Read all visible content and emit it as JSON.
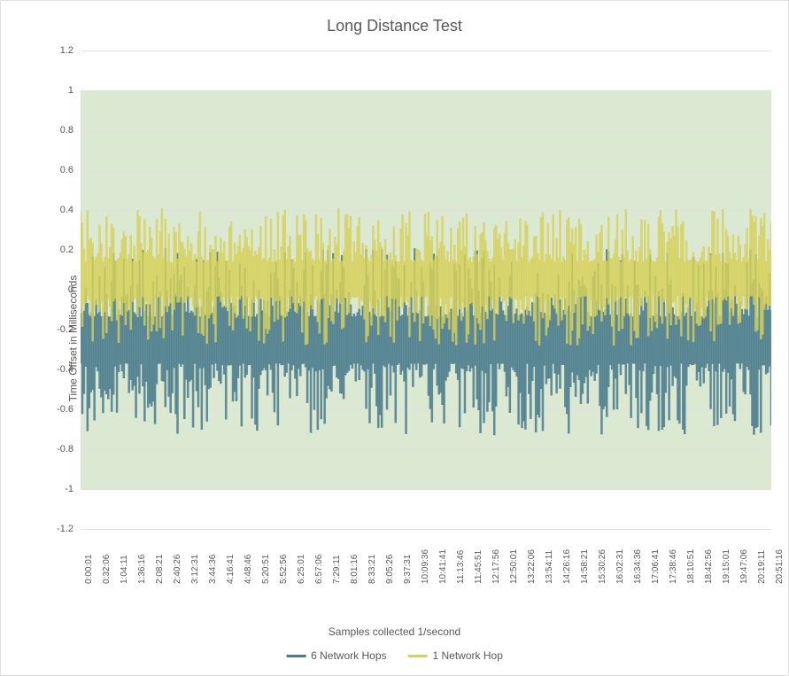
{
  "chart": {
    "type": "area",
    "title": "Long Distance Test",
    "title_fontsize": 18,
    "title_color": "#595959",
    "background_color": "#ffffff",
    "plot_band_color": "#dbe9d3",
    "grid_color": "#e0e0e0",
    "text_color": "#595959",
    "label_fontsize": 12,
    "tick_fontsize": 11,
    "y_axis": {
      "label": "Time Offset in Milliseconds",
      "min": -1.2,
      "max": 1.2,
      "tick_step": 0.2,
      "ticks": [
        1.2,
        1.0,
        0.8,
        0.6,
        0.4,
        0.2,
        0.0,
        -0.2,
        -0.4,
        -0.6,
        -0.8,
        -1.0,
        -1.2
      ],
      "tick_labels": [
        "1.2",
        "1",
        "0.8",
        "0.6",
        "0.4",
        "0.2",
        "0",
        "-0.2",
        "-0.4",
        "-0.6",
        "-0.8",
        "-1",
        "-1.2"
      ],
      "band_min": -1.0,
      "band_max": 1.0
    },
    "x_axis": {
      "label": "Samples collected 1/second",
      "tick_labels": [
        "0:00:01",
        "0:32:06",
        "1:04:11",
        "1:36:16",
        "2:08:21",
        "2:40:26",
        "3:12:31",
        "3:44:36",
        "4:16:41",
        "4:48:46",
        "5:20:51",
        "5:52:56",
        "6:25:01",
        "6:57:06",
        "7:29:11",
        "8:01:16",
        "8:33:21",
        "9:05:26",
        "9:37:31",
        "10:09:36",
        "10:41:41",
        "11:13:46",
        "11:45:51",
        "12:17:56",
        "12:50:01",
        "13:22:06",
        "13:54:11",
        "14:26:16",
        "14:58:21",
        "15:30:26",
        "16:02:31",
        "16:34:36",
        "17:06:41",
        "17:38:46",
        "18:10:51",
        "18:42:56",
        "19:15:01",
        "19:47:06",
        "20:19:11",
        "20:51:16"
      ]
    },
    "series": [
      {
        "name": "6 Network Hops",
        "color": "#4a7b8c",
        "opacity": 0.85,
        "approx_min": -0.73,
        "approx_max": 0.21,
        "approx_mean_center": -0.25,
        "data_points": 400
      },
      {
        "name": "1 Network Hop",
        "color": "#d6d15a",
        "opacity": 0.8,
        "approx_min": -0.28,
        "approx_max": 0.41,
        "approx_mean_center": 0.05,
        "data_points": 400
      }
    ],
    "legend": {
      "position": "bottom",
      "items": [
        {
          "label": "6 Network Hops",
          "color": "#4a7b8c"
        },
        {
          "label": "1 Network Hop",
          "color": "#d6d15a"
        }
      ]
    }
  }
}
